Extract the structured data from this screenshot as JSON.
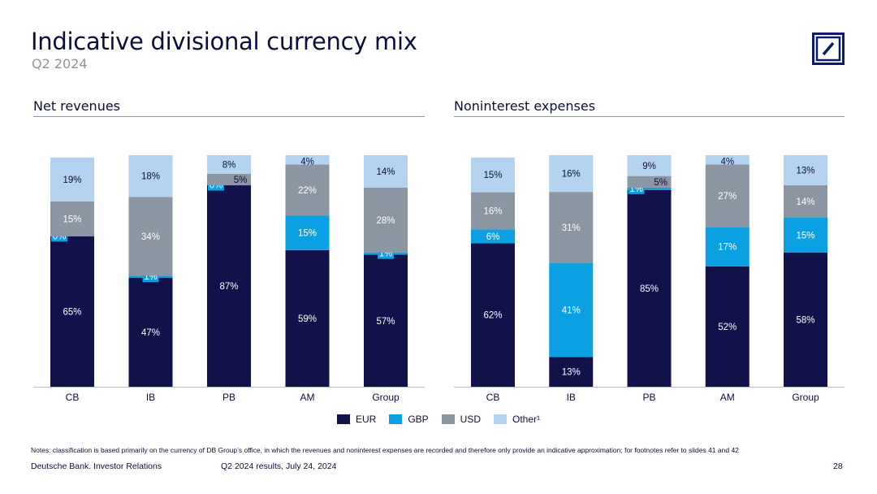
{
  "header": {
    "title": "Indicative divisional currency mix",
    "subtitle": "Q2 2024"
  },
  "logo": {
    "icon": "deutsche-bank-logo-icon",
    "color": "#0b1a6e"
  },
  "colors": {
    "EUR": "#12124a",
    "GBP": "#0ba0e2",
    "USD": "#8b96a2",
    "Other": "#b4d3f0"
  },
  "chart_data": [
    {
      "type": "bar",
      "stacked": true,
      "title": "Net revenues",
      "categories": [
        "CB",
        "IB",
        "PB",
        "AM",
        "Group"
      ],
      "ylim": [
        0,
        100
      ],
      "series": [
        {
          "name": "EUR",
          "values": [
            65,
            47,
            87,
            59,
            57
          ],
          "labels": [
            "65%",
            "47%",
            "87%",
            "59%",
            "57%"
          ]
        },
        {
          "name": "GBP",
          "values": [
            0,
            1,
            0,
            15,
            1
          ],
          "labels": [
            "0%",
            "1%",
            "0%",
            "15%",
            "1%"
          ]
        },
        {
          "name": "USD",
          "values": [
            15,
            34,
            5,
            22,
            28
          ],
          "labels": [
            "15%",
            "34%",
            "5%",
            "22%",
            "28%"
          ]
        },
        {
          "name": "Other¹",
          "values": [
            19,
            18,
            8,
            4,
            14
          ],
          "labels": [
            "19%",
            "18%",
            "8%",
            "4%",
            "14%"
          ]
        }
      ]
    },
    {
      "type": "bar",
      "stacked": true,
      "title": "Noninterest expenses",
      "categories": [
        "CB",
        "IB",
        "PB",
        "AM",
        "Group"
      ],
      "ylim": [
        0,
        100
      ],
      "series": [
        {
          "name": "EUR",
          "values": [
            62,
            13,
            85,
            52,
            58
          ],
          "labels": [
            "62%",
            "13%",
            "85%",
            "52%",
            "58%"
          ]
        },
        {
          "name": "GBP",
          "values": [
            6,
            41,
            1,
            17,
            15
          ],
          "labels": [
            "6%",
            "41%",
            "1%",
            "17%",
            "15%"
          ]
        },
        {
          "name": "USD",
          "values": [
            16,
            31,
            5,
            27,
            14
          ],
          "labels": [
            "16%",
            "31%",
            "5%",
            "27%",
            "14%"
          ]
        },
        {
          "name": "Other¹",
          "values": [
            15,
            16,
            9,
            4,
            13
          ],
          "labels": [
            "15%",
            "16%",
            "9%",
            "4%",
            "13%"
          ]
        }
      ]
    }
  ],
  "legend": {
    "items": [
      {
        "label": "EUR",
        "key": "EUR"
      },
      {
        "label": "GBP",
        "key": "GBP"
      },
      {
        "label": "USD",
        "key": "USD"
      },
      {
        "label": "Other¹",
        "key": "Other"
      }
    ]
  },
  "notes": "Notes: classification is based primarily on the currency of DB Group’s office, in which the revenues and noninterest expenses are recorded and therefore only provide an indicative approximation; for footnotes refer to slides 41 and 42",
  "footer": {
    "brand": "Deutsche Bank. Investor Relations",
    "report": "Q2 2024 results, July 24, 2024",
    "page": "28"
  }
}
